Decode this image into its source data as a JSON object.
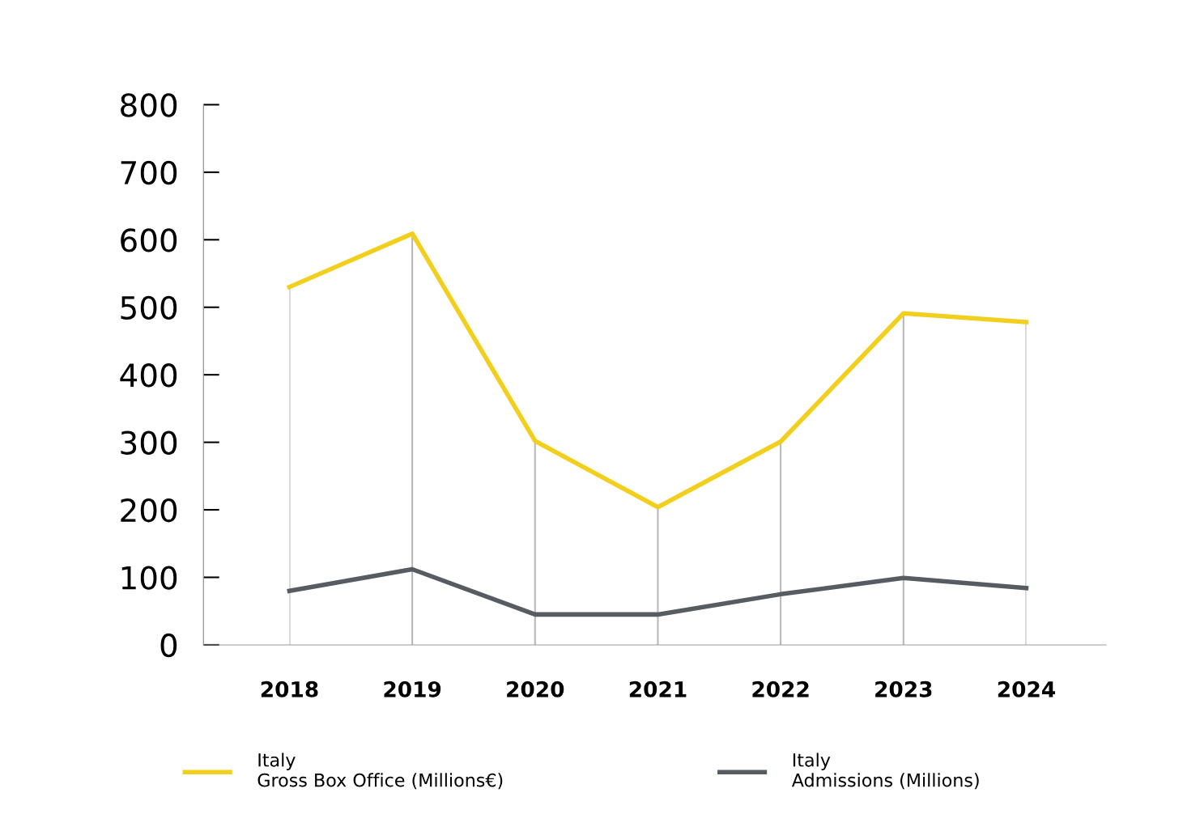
{
  "chart_data": {
    "type": "line",
    "categories": [
      "2018",
      "2019",
      "2020",
      "2021",
      "2022",
      "2023",
      "2024"
    ],
    "series": [
      {
        "name": "Italy\nGross Box Office (Millions€)",
        "color": "#f2cf1d",
        "values": [
          530,
          609,
          302,
          204,
          301,
          491,
          478
        ]
      },
      {
        "name": "Italy\nAdmissions (Millions)",
        "color": "#575c63",
        "values": [
          80,
          112,
          45,
          45,
          75,
          99,
          84
        ]
      }
    ],
    "ylim": [
      0,
      800
    ],
    "yticks": [
      0,
      100,
      200,
      300,
      400,
      500,
      600,
      700,
      800
    ],
    "grid": "x",
    "legend": "bottom",
    "marker": "none",
    "line_style": "solid"
  }
}
